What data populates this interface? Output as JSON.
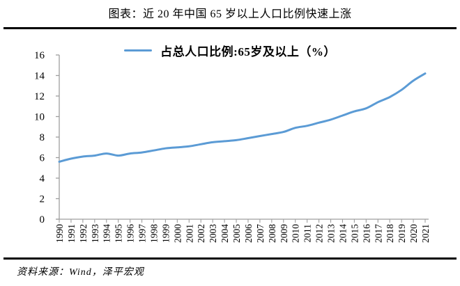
{
  "header": {
    "title": "图表：近 20 年中国 65 岁以上人口比例快速上涨"
  },
  "chart_data": {
    "type": "line",
    "title": "图表：近 20 年中国 65 岁以上人口比例快速上涨",
    "legend": "占总人口比例:65岁及以上（%）",
    "legend_position": "top-center",
    "categories": [
      "1990",
      "1991",
      "1992",
      "1993",
      "1994",
      "1995",
      "1996",
      "1997",
      "1998",
      "1999",
      "2000",
      "2001",
      "2002",
      "2003",
      "2004",
      "2005",
      "2006",
      "2007",
      "2008",
      "2009",
      "2010",
      "2011",
      "2012",
      "2013",
      "2014",
      "2015",
      "2016",
      "2017",
      "2018",
      "2019",
      "2020",
      "2021"
    ],
    "values": [
      5.6,
      5.9,
      6.1,
      6.2,
      6.4,
      6.2,
      6.4,
      6.5,
      6.7,
      6.9,
      7.0,
      7.1,
      7.3,
      7.5,
      7.6,
      7.7,
      7.9,
      8.1,
      8.3,
      8.5,
      8.9,
      9.1,
      9.4,
      9.7,
      10.1,
      10.5,
      10.8,
      11.4,
      11.9,
      12.6,
      13.5,
      14.2
    ],
    "xlabel": "",
    "ylabel": "",
    "ylim": [
      0,
      16
    ],
    "yticks": [
      0,
      2,
      4,
      6,
      8,
      10,
      12,
      14,
      16
    ],
    "grid": false,
    "line_color": "#5B9BD5",
    "axis_color": "#9e9e9e",
    "tick_label_color": "#000000"
  },
  "footer": {
    "source": "资料来源：Wind，泽平宏观"
  }
}
